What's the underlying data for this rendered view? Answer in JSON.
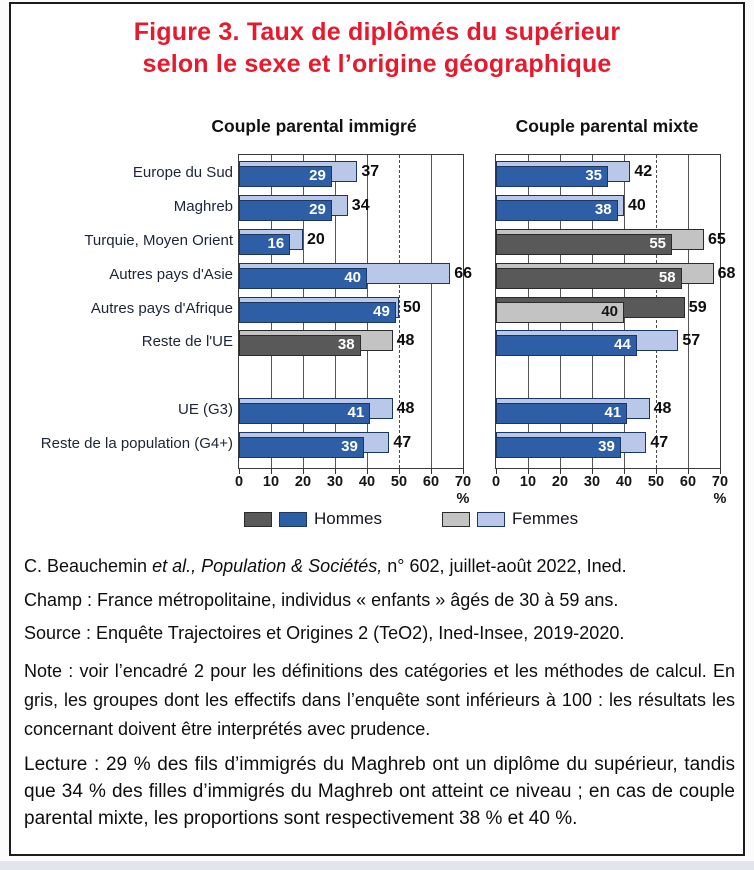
{
  "figure": {
    "title_line1": "Figure 3. Taux de diplômés du supérieur",
    "title_line2": "selon le sexe et l’origine géographique"
  },
  "colors": {
    "title_red": "#E8192D",
    "dark_blue": "#2E5EA6",
    "light_blue": "#B9C7E9",
    "dark_grey": "#595959",
    "light_grey": "#C3C3C3",
    "blue_border": "#1B3661",
    "grey_border": "#2B2B2B"
  },
  "legend": {
    "hommes_label": "Hommes",
    "femmes_label": "Femmes"
  },
  "chart_data": {
    "type": "bar",
    "orientation": "horizontal",
    "categories": [
      "Europe du Sud",
      "Maghreb",
      "Turquie, Moyen Orient",
      "Autres pays d'Asie",
      "Autres pays d'Afrique",
      "Reste de l'UE",
      "UE (G3)",
      "Reste de la population (G4+)"
    ],
    "panels": [
      {
        "key": "immigre",
        "title": "Couple parental immigré",
        "series": [
          {
            "name": "Hommes",
            "values": [
              29,
              29,
              16,
              40,
              49,
              38,
              41,
              39
            ]
          },
          {
            "name": "Femmes",
            "values": [
              37,
              34,
              20,
              66,
              50,
              48,
              48,
              47
            ]
          }
        ],
        "grey_categories": [
          "Reste de l'UE"
        ]
      },
      {
        "key": "mixte",
        "title": "Couple parental mixte",
        "series": [
          {
            "name": "Hommes",
            "values": [
              35,
              38,
              55,
              58,
              59,
              44,
              41,
              39
            ]
          },
          {
            "name": "Femmes",
            "values": [
              42,
              40,
              65,
              68,
              40,
              57,
              48,
              47
            ]
          }
        ],
        "grey_categories": [
          "Turquie, Moyen Orient",
          "Autres pays d'Asie",
          "Autres pays d'Afrique"
        ]
      }
    ],
    "rows": [
      {
        "label": "Europe du Sud",
        "immigre": {
          "hommes": 29,
          "femmes": 37,
          "grey": false
        },
        "mixte": {
          "hommes": 35,
          "femmes": 42,
          "grey": false
        }
      },
      {
        "label": "Maghreb",
        "immigre": {
          "hommes": 29,
          "femmes": 34,
          "grey": false
        },
        "mixte": {
          "hommes": 38,
          "femmes": 40,
          "grey": false
        }
      },
      {
        "label": "Turquie, Moyen Orient",
        "immigre": {
          "hommes": 16,
          "femmes": 20,
          "grey": false
        },
        "mixte": {
          "hommes": 55,
          "femmes": 65,
          "grey": true
        }
      },
      {
        "label": "Autres pays d'Asie",
        "immigre": {
          "hommes": 40,
          "femmes": 66,
          "grey": false
        },
        "mixte": {
          "hommes": 58,
          "femmes": 68,
          "grey": true
        }
      },
      {
        "label": "Autres pays d'Afrique",
        "immigre": {
          "hommes": 49,
          "femmes": 50,
          "grey": false
        },
        "mixte": {
          "hommes": 59,
          "femmes": 40,
          "grey": true,
          "front": "femmes"
        }
      },
      {
        "label": "Reste de l'UE",
        "immigre": {
          "hommes": 38,
          "femmes": 48,
          "grey": true
        },
        "mixte": {
          "hommes": 44,
          "femmes": 57,
          "grey": false
        }
      },
      null,
      {
        "label": "UE (G3)",
        "immigre": {
          "hommes": 41,
          "femmes": 48,
          "grey": false
        },
        "mixte": {
          "hommes": 41,
          "femmes": 48,
          "grey": false
        }
      },
      {
        "label": "Reste de la population (G4+)",
        "immigre": {
          "hommes": 39,
          "femmes": 47,
          "grey": false
        },
        "mixte": {
          "hommes": 39,
          "femmes": 47,
          "grey": false
        }
      }
    ],
    "xlim": [
      0,
      70
    ],
    "x_ticks": [
      0,
      10,
      20,
      30,
      40,
      50,
      60,
      70
    ],
    "x_unit": "%",
    "dashed_reference_line": 50,
    "legend": [
      "Hommes",
      "Femmes"
    ],
    "legend_position": "bottom",
    "grid": true
  },
  "footer": {
    "citation_segments": [
      {
        "text": "C. Beauchemin ",
        "italic": false
      },
      {
        "text": "et al., Population & Sociétés,",
        "italic": true
      },
      {
        "text": " n° 602, juillet-août 2022, Ined.",
        "italic": false
      }
    ],
    "champ": "Champ : France métropolitaine, individus « enfants » âgés de 30 à 59 ans.",
    "source": "Source : Enquête Trajectoires et Origines 2 (TeO2), Ined-Insee, 2019-2020.",
    "note": "Note : voir l’encadré 2 pour les définitions des catégories et les méthodes de calcul. En gris, les groupes dont les effectifs dans l’enquête sont inférieurs à 100 : les résultats les concernant doivent être interprétés avec prudence.",
    "lecture": "Lecture : 29 % des fils d’immigrés du Maghreb ont un diplôme du supérieur, tandis que 34 % des filles d’immigrés du Maghreb ont atteint ce niveau ; en cas de couple parental mixte, les proportions sont respectivement 38 % et 40 %."
  }
}
